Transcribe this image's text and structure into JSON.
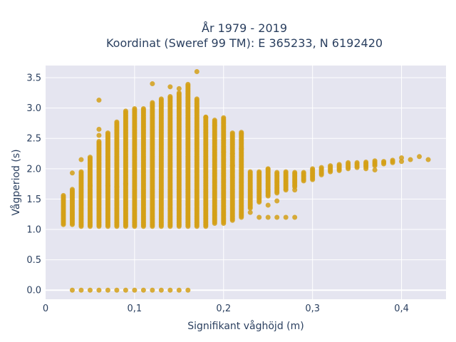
{
  "chart_data": {
    "type": "scatter",
    "title_lines": [
      "År 1979 - 2019",
      "Koordinat (Sweref 99 TM): E 365233, N 6192420"
    ],
    "xlabel": "Signifikant våghöjd (m)",
    "ylabel": "Vågperiod (s)",
    "xlim": [
      0.0,
      0.45
    ],
    "ylim": [
      -0.15,
      3.7
    ],
    "x_ticks": [
      0,
      0.1,
      0.2,
      0.3,
      0.4
    ],
    "x_tick_labels": [
      "0",
      "0,1",
      "0,2",
      "0,3",
      "0,4"
    ],
    "y_ticks": [
      0,
      0.5,
      1,
      1.5,
      2,
      2.5,
      3,
      3.5
    ],
    "y_tick_labels": [
      "0.0",
      "0.5",
      "1.0",
      "1.5",
      "2.0",
      "2.5",
      "3.0",
      "3.5"
    ],
    "grid": true,
    "legend": "none",
    "colors": {
      "marker": "#d4a017",
      "plot_bg": "#e5e5f0",
      "grid": "#ffffff",
      "text": "#2a3f5f"
    },
    "zero_period_x": [
      0.03,
      0.04,
      0.05,
      0.06,
      0.07,
      0.08,
      0.09,
      0.1,
      0.11,
      0.12,
      0.13,
      0.14,
      0.15,
      0.16
    ],
    "bands": [
      {
        "x": 0.02,
        "y_min": 1.08,
        "y_max": 1.57
      },
      {
        "x": 0.03,
        "y_min": 1.08,
        "y_max": 1.67
      },
      {
        "x": 0.04,
        "y_min": 1.05,
        "y_max": 1.95
      },
      {
        "x": 0.05,
        "y_min": 1.05,
        "y_max": 2.2
      },
      {
        "x": 0.06,
        "y_min": 1.05,
        "y_max": 2.45
      },
      {
        "x": 0.07,
        "y_min": 1.05,
        "y_max": 2.6
      },
      {
        "x": 0.08,
        "y_min": 1.05,
        "y_max": 2.78
      },
      {
        "x": 0.09,
        "y_min": 1.05,
        "y_max": 2.95
      },
      {
        "x": 0.1,
        "y_min": 1.05,
        "y_max": 3.0
      },
      {
        "x": 0.11,
        "y_min": 1.05,
        "y_max": 3.0
      },
      {
        "x": 0.12,
        "y_min": 1.05,
        "y_max": 3.1
      },
      {
        "x": 0.13,
        "y_min": 1.05,
        "y_max": 3.15
      },
      {
        "x": 0.14,
        "y_min": 1.05,
        "y_max": 3.2
      },
      {
        "x": 0.15,
        "y_min": 1.05,
        "y_max": 3.25
      },
      {
        "x": 0.16,
        "y_min": 1.05,
        "y_max": 3.4
      },
      {
        "x": 0.17,
        "y_min": 1.05,
        "y_max": 3.15
      },
      {
        "x": 0.18,
        "y_min": 1.05,
        "y_max": 2.85
      },
      {
        "x": 0.19,
        "y_min": 1.1,
        "y_max": 2.8
      },
      {
        "x": 0.2,
        "y_min": 1.1,
        "y_max": 2.85
      },
      {
        "x": 0.21,
        "y_min": 1.15,
        "y_max": 2.6
      },
      {
        "x": 0.22,
        "y_min": 1.2,
        "y_max": 2.6
      },
      {
        "x": 0.23,
        "y_min": 1.35,
        "y_max": 1.95
      },
      {
        "x": 0.24,
        "y_min": 1.45,
        "y_max": 1.95
      },
      {
        "x": 0.25,
        "y_min": 1.55,
        "y_max": 2.0
      },
      {
        "x": 0.26,
        "y_min": 1.6,
        "y_max": 1.95
      },
      {
        "x": 0.27,
        "y_min": 1.65,
        "y_max": 1.95
      },
      {
        "x": 0.28,
        "y_min": 1.7,
        "y_max": 1.95
      },
      {
        "x": 0.29,
        "y_min": 1.8,
        "y_max": 1.95
      },
      {
        "x": 0.3,
        "y_min": 1.82,
        "y_max": 2.0
      },
      {
        "x": 0.31,
        "y_min": 1.9,
        "y_max": 2.02
      },
      {
        "x": 0.32,
        "y_min": 1.95,
        "y_max": 2.05
      },
      {
        "x": 0.33,
        "y_min": 1.97,
        "y_max": 2.08
      },
      {
        "x": 0.34,
        "y_min": 2.0,
        "y_max": 2.1
      },
      {
        "x": 0.35,
        "y_min": 2.02,
        "y_max": 2.1
      },
      {
        "x": 0.36,
        "y_min": 2.03,
        "y_max": 2.12
      },
      {
        "x": 0.37,
        "y_min": 2.05,
        "y_max": 2.13
      },
      {
        "x": 0.38,
        "y_min": 2.08,
        "y_max": 2.13
      },
      {
        "x": 0.39,
        "y_min": 2.1,
        "y_max": 2.15
      }
    ],
    "points": [
      {
        "x": 0.06,
        "y": 3.13
      },
      {
        "x": 0.06,
        "y": 2.65
      },
      {
        "x": 0.06,
        "y": 2.55
      },
      {
        "x": 0.12,
        "y": 3.4
      },
      {
        "x": 0.14,
        "y": 3.35
      },
      {
        "x": 0.15,
        "y": 3.32
      },
      {
        "x": 0.17,
        "y": 3.6
      },
      {
        "x": 0.18,
        "y": 2.85
      },
      {
        "x": 0.19,
        "y": 2.72
      },
      {
        "x": 0.2,
        "y": 2.28
      },
      {
        "x": 0.21,
        "y": 2.25
      },
      {
        "x": 0.22,
        "y": 2.58
      },
      {
        "x": 0.22,
        "y": 2.33
      },
      {
        "x": 0.21,
        "y": 2.05
      },
      {
        "x": 0.03,
        "y": 1.93
      },
      {
        "x": 0.04,
        "y": 2.15
      },
      {
        "x": 0.05,
        "y": 1.72
      },
      {
        "x": 0.07,
        "y": 1.72
      },
      {
        "x": 0.08,
        "y": 1.7
      },
      {
        "x": 0.09,
        "y": 1.75
      },
      {
        "x": 0.23,
        "y": 1.28
      },
      {
        "x": 0.24,
        "y": 1.2
      },
      {
        "x": 0.25,
        "y": 1.2
      },
      {
        "x": 0.26,
        "y": 1.2
      },
      {
        "x": 0.27,
        "y": 1.2
      },
      {
        "x": 0.28,
        "y": 1.2
      },
      {
        "x": 0.25,
        "y": 1.4
      },
      {
        "x": 0.26,
        "y": 1.47
      },
      {
        "x": 0.28,
        "y": 1.65
      },
      {
        "x": 0.25,
        "y": 2.0
      },
      {
        "x": 0.37,
        "y": 1.98
      },
      {
        "x": 0.36,
        "y": 2.0
      },
      {
        "x": 0.4,
        "y": 2.18
      },
      {
        "x": 0.4,
        "y": 2.12
      },
      {
        "x": 0.41,
        "y": 2.15
      },
      {
        "x": 0.42,
        "y": 2.2
      },
      {
        "x": 0.43,
        "y": 2.15
      }
    ]
  }
}
